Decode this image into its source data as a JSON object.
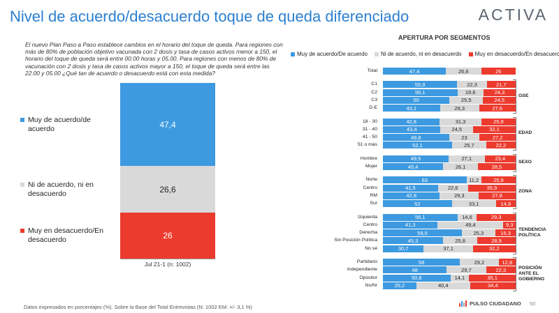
{
  "title": "Nivel de acuerdo/desacuerdo toque de queda diferenciado",
  "logo": "ACTIVA",
  "question": "El nuevo Plan Paso a Paso establece cambios en el horario del toque de queda. Para regiones con más de 80% de población objetivo vacunada con 2 dosis y tasa de casos activos menor a 150, el horario del toque de queda será entre 00.00 horas y 05.00. Para regiones con menos de 80% de vacunación con 2 dosis y tasa de casos activos mayor a 150, el toque de queda será entre las 22.00 y 05.00 ¿Qué tan de acuerdo o desacuerdo está con esta medida?",
  "footnote": "Datos expresados en porcentajes (%). Sobre la Base del Total Entrevistas (N: 1002  EM: +/- 3,1 %)",
  "brand": "PULSO CIUDADANO",
  "page_number": "50",
  "colors": {
    "agree": "#3d9ae0",
    "neutral": "#d9d9d9",
    "disagree": "#ec3b2e"
  },
  "chart_data": [
    {
      "type": "bar",
      "stacked": true,
      "orientation": "vertical",
      "categories": [
        "Jul 21-1 (n: 1002)"
      ],
      "ylim": [
        0,
        100
      ],
      "series": [
        {
          "name": "Muy de acuerdo/de acuerdo",
          "values": [
            47.4
          ]
        },
        {
          "name": "Ni de acuerdo, ni en desacuerdo",
          "values": [
            26.6
          ]
        },
        {
          "name": "Muy en desacuerdo/En desacuerdo",
          "values": [
            26
          ]
        }
      ]
    },
    {
      "type": "bar",
      "stacked": true,
      "orientation": "horizontal",
      "title": "APERTURA POR SEGMENTOS",
      "legend_position": "top",
      "xlim": [
        0,
        100
      ],
      "legend": [
        "Muy de acuerdo/De acuerdo",
        "Ni de acuerdo, ni en desacuerdo",
        "Muy en desacuerdo/En desacuerdo"
      ],
      "groups": [
        {
          "label": "",
          "rows": [
            {
              "label": "Total",
              "values": [
                47.4,
                26.6,
                26
              ],
              "labels": [
                "47,4",
                "26,6",
                "26"
              ]
            }
          ]
        },
        {
          "label": "GSE",
          "rows": [
            {
              "label": "C1",
              "values": [
                55.9,
                22.3,
                21.7
              ],
              "labels": [
                "55,9",
                "22,3",
                "21,7"
              ]
            },
            {
              "label": "C2",
              "values": [
                56.1,
                19.6,
                24.3
              ],
              "labels": [
                "56,1",
                "19,6",
                "24,3"
              ]
            },
            {
              "label": "C3",
              "values": [
                50,
                25.5,
                24.5
              ],
              "labels": [
                "50",
                "25,5",
                "24,5"
              ]
            },
            {
              "label": "D-E",
              "values": [
                43.1,
                29.3,
                27.6
              ],
              "labels": [
                "43,1",
                "29,3",
                "27,6"
              ]
            }
          ]
        },
        {
          "label": "EDAD",
          "rows": [
            {
              "label": "18 - 30",
              "values": [
                42.8,
                31.3,
                25.9
              ],
              "labels": [
                "42,8",
                "31,3",
                "25,9"
              ]
            },
            {
              "label": "31 - 40",
              "values": [
                43.4,
                24.5,
                32.1
              ],
              "labels": [
                "43,4",
                "24,5",
                "32,1"
              ]
            },
            {
              "label": "41 - 50",
              "values": [
                49.8,
                23,
                27.2
              ],
              "labels": [
                "49,8",
                "23",
                "27,2"
              ]
            },
            {
              "label": "51 o más",
              "values": [
                52.1,
                25.7,
                22.2
              ],
              "labels": [
                "52,1",
                "25,7",
                "22,2"
              ]
            }
          ]
        },
        {
          "label": "SEXO",
          "rows": [
            {
              "label": "Hombre",
              "values": [
                49.5,
                27.1,
                23.4
              ],
              "labels": [
                "49,5",
                "27,1",
                "23,4"
              ]
            },
            {
              "label": "Mujer",
              "values": [
                45.4,
                26.1,
                28.5
              ],
              "labels": [
                "45,4",
                "26,1",
                "28,5"
              ]
            }
          ]
        },
        {
          "label": "ZONA",
          "rows": [
            {
              "label": "Norte",
              "values": [
                63,
                11.2,
                25.9
              ],
              "labels": [
                "63",
                "11,2",
                "25,9"
              ]
            },
            {
              "label": "Centro",
              "values": [
                41.5,
                22.6,
                35.9
              ],
              "labels": [
                "41,5",
                "22,6",
                "35,9"
              ]
            },
            {
              "label": "RM",
              "values": [
                42.8,
                29.3,
                27.8
              ],
              "labels": [
                "42,8",
                "29,3",
                "27,8"
              ]
            },
            {
              "label": "Sur",
              "values": [
                52,
                33.1,
                14.9
              ],
              "labels": [
                "52",
                "33,1",
                "14,9"
              ]
            }
          ]
        },
        {
          "label": "TENDENCIA POLÍTICA",
          "rows": [
            {
              "label": "Izquierda",
              "values": [
                56.1,
                14.6,
                29.3
              ],
              "labels": [
                "56,1",
                "14,6",
                "29,3"
              ]
            },
            {
              "label": "Centro",
              "values": [
                41.3,
                49.4,
                9.3
              ],
              "labels": [
                "41,3",
                "49,4",
                "9,3"
              ]
            },
            {
              "label": "Derecha",
              "values": [
                59.5,
                25.3,
                15.3
              ],
              "labels": [
                "59,5",
                "25,3",
                "15,3"
              ]
            },
            {
              "label": "Sin Posición Política",
              "values": [
                45.3,
                25.8,
                28.9
              ],
              "labels": [
                "45,3",
                "25,8",
                "28,9"
              ]
            },
            {
              "label": "No sé",
              "values": [
                30.7,
                37.1,
                32.2
              ],
              "labels": [
                "30,7",
                "37,1",
                "32,2"
              ]
            }
          ]
        },
        {
          "label": "POSICIÓN ANTE EL GOBIERNO",
          "rows": [
            {
              "label": "Partidario",
              "values": [
                58,
                29.2,
                12.8
              ],
              "labels": [
                "58",
                "29,2",
                "12,8"
              ]
            },
            {
              "label": "Independiente",
              "values": [
                48,
                29.7,
                22.3
              ],
              "labels": [
                "48",
                "29,7",
                "22,3"
              ]
            },
            {
              "label": "Opositor",
              "values": [
                50.8,
                14.1,
                35.1
              ],
              "labels": [
                "50,8",
                "14,1",
                "35,1"
              ]
            },
            {
              "label": "Ns/Nr",
              "values": [
                25.2,
                40.4,
                34.4
              ],
              "labels": [
                "25,2",
                "40,4",
                "34,4"
              ]
            }
          ]
        }
      ]
    }
  ],
  "left_labels": [
    "Muy de acuerdo/de acuerdo",
    "Ni de acuerdo, ni en desacuerdo",
    "Muy en desacuerdo/En desacuerdo"
  ],
  "left_value_labels": [
    "47,4",
    "26,6",
    "26"
  ]
}
